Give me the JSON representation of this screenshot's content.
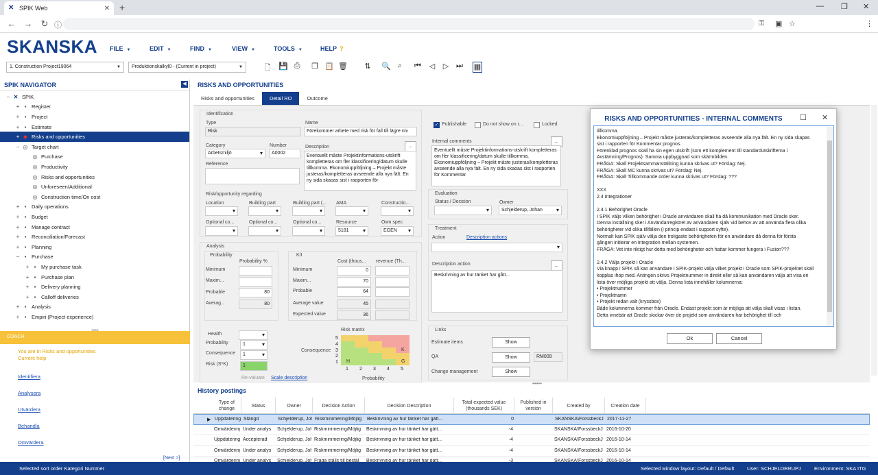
{
  "browser": {
    "tab_title": "SPIK Web",
    "new_tab": "+",
    "tab_close": "✕",
    "window_controls": [
      "—",
      "❐",
      "✕"
    ],
    "nav_icons": [
      "←",
      "→",
      "↻"
    ]
  },
  "app": {
    "brand": "SKANSKA",
    "menu": [
      "FILE",
      "EDIT",
      "FIND",
      "VIEW",
      "TOOLS",
      "HELP"
    ],
    "project_select": "1. Construction Project19064",
    "calc_select": "Produktionskalkyl0 - (Current in project)"
  },
  "navigator": {
    "title": "SPIK NAVIGATOR",
    "items": [
      {
        "label": "SPIK",
        "exp": "−",
        "indent": 0,
        "icon": "spik-icon"
      },
      {
        "label": "Register",
        "exp": "+",
        "indent": 1,
        "icon": "list-icon"
      },
      {
        "label": "Project",
        "exp": "+",
        "indent": 1,
        "icon": "folder-icon"
      },
      {
        "label": "Estimate",
        "exp": "+",
        "indent": 1,
        "icon": "estimate-icon"
      },
      {
        "label": "Risks and opportunities",
        "exp": "+",
        "indent": 1,
        "icon": "diamond-icon",
        "selected": true
      },
      {
        "label": "Target chart",
        "exp": "−",
        "indent": 1,
        "icon": "target-icon"
      },
      {
        "label": "Purchase",
        "exp": "",
        "indent": 2,
        "icon": "target-icon"
      },
      {
        "label": "Productivity",
        "exp": "",
        "indent": 2,
        "icon": "target-icon"
      },
      {
        "label": "Risks and opportunities",
        "exp": "",
        "indent": 2,
        "icon": "target-icon"
      },
      {
        "label": "Unforeseen/Additional",
        "exp": "",
        "indent": 2,
        "icon": "target-icon"
      },
      {
        "label": "Construction time/On cost",
        "exp": "",
        "indent": 2,
        "icon": "target-icon"
      },
      {
        "label": "Daily operations",
        "exp": "+",
        "indent": 1,
        "icon": "calendar-icon"
      },
      {
        "label": "Budget",
        "exp": "+",
        "indent": 1,
        "icon": "budget-icon"
      },
      {
        "label": "Manage contract",
        "exp": "+",
        "indent": 1,
        "icon": "contract-icon"
      },
      {
        "label": "Reconciliation/Forecast",
        "exp": "+",
        "indent": 1,
        "icon": "forecast-icon"
      },
      {
        "label": "Planning",
        "exp": "+",
        "indent": 1,
        "icon": "planning-icon"
      },
      {
        "label": "Purchase",
        "exp": "−",
        "indent": 1,
        "icon": "purchase-icon"
      },
      {
        "label": "My purchase task",
        "exp": "+",
        "indent": 2,
        "icon": "task-icon"
      },
      {
        "label": "Purchase plan",
        "exp": "+",
        "indent": 2,
        "icon": "plan-icon"
      },
      {
        "label": "Delivery planning",
        "exp": "+",
        "indent": 2,
        "icon": "delivery-icon"
      },
      {
        "label": "Calloff deliveries",
        "exp": "+",
        "indent": 2,
        "icon": "calloff-icon"
      },
      {
        "label": "Analysis",
        "exp": "+",
        "indent": 1,
        "icon": "analysis-icon"
      },
      {
        "label": "Empiri (Project experience)",
        "exp": "+",
        "indent": 1,
        "icon": "chart-icon"
      }
    ]
  },
  "coach": {
    "title": "COACH",
    "line1": "You are in Risks and opportunities",
    "line2": "Current help",
    "links": [
      "Identifiera",
      "Analysera",
      "Utvärdera",
      "Behandla",
      "Omvärdera"
    ],
    "next": "[Next >]"
  },
  "main": {
    "title": "RISKS AND OPPORTUNITIES",
    "tabs": [
      "Risks and opportunities",
      "Detail RO",
      "Outcome"
    ],
    "identification": {
      "group": "Identification",
      "type_label": "Type",
      "type_value": "Risk",
      "name_label": "Name",
      "name_value": "Förekommer arbete med risk för fall till lägre niv",
      "category_label": "Category",
      "category_value": "Arbetsmiljö",
      "number_label": "Number",
      "number_value": "A0002",
      "description_label": "Description",
      "description_value": "Eventuellt måste Projektinformations-utskrift kompletteras om fler klassificering/datum skulle tillkomma. Ekonomiuppföljning – Projekt måste justeras/kompletteras avseende alla nya fält. En ny sida skaoas sist i raoporten för",
      "reference_label": "Reference",
      "regarding_label": "Risk/opportunity regarding",
      "row1": [
        "Location",
        "Building part",
        "Building part (...",
        "AMA",
        "Constructio..."
      ],
      "row2": [
        "Optional co...",
        "Optional co...",
        "Optional co...",
        "Resource",
        "Own spec"
      ],
      "resource_value": "5181",
      "ownspec_value": "EGEN"
    },
    "right": {
      "publishable": "Publishable",
      "not_show": "Do not show on r...",
      "locked": "Locked",
      "internal_comments_label": "Internal comments",
      "internal_comments_value": "Eventuellt måste Projektinformations-utskrift kompletteras om fler klassificering/datum skulle tillkomma. Ekonomiuppföljning – Projekt måste justeras/kompletteras avseende alla nya fält. En ny sida skaoas sist i raoporten för Kommentar",
      "evaluation_group": "Evaluation",
      "status_label": "Status / Decision",
      "owner_label": "Owner",
      "owner_value": "Schjelderup, Johan",
      "treatment_group": "Treatment",
      "action_label": "Action",
      "description_actions": "Description actions",
      "desc_action_label": "Description action",
      "desc_action_value": "Beskrivning av hur tänket har gått...",
      "links_group": "Links",
      "estimate_items": "Estimate items",
      "qa": "QA",
      "change_mgmt": "Change management",
      "show": "Show",
      "qa_value": "RM009"
    },
    "analysis": {
      "group": "Analysis",
      "probability_group": "Probability",
      "prob_pct_label": "Probability %",
      "minimum": "Minimum",
      "maximum": "Maxim...",
      "probable": "Probable",
      "average": "Averag...",
      "prob_values": [
        "",
        "",
        "80",
        "80"
      ],
      "ki_group": "K/I",
      "cost_label": "Cost (thous...",
      "revenue_label": "revenue (Th...",
      "cost_values": [
        "0",
        "70",
        "64",
        "45",
        "36"
      ],
      "average_value": "Average value",
      "expected_value": "Expected value",
      "health_label": "Health",
      "probability_label": "Probability",
      "probability_value": "1",
      "consequence_label": "Consequence",
      "consequence_value": "1",
      "risk_label": "Risk (S*K)",
      "risk_value": "1",
      "revaluate": "Re-valuate",
      "scale_description": "Scale description",
      "matrix_title": "Risk matrix",
      "matrix_xlabel": "Probability",
      "matrix_ylabel": "Consequence",
      "matrix_rows": [
        "5",
        "4",
        "3",
        "2",
        "1"
      ],
      "matrix_cols": [
        "1",
        "2",
        "3",
        "4",
        "5"
      ],
      "matrix_h": "H",
      "matrix_k": "K",
      "matrix_g": "G"
    }
  },
  "history": {
    "title": "History postings",
    "columns": [
      "Type of change",
      "Status",
      "Owner",
      "Decision Action",
      "Decision Description",
      "Total expected value (thousands SEK)",
      "Published in version",
      "Created by",
      "Creation date"
    ],
    "rows": [
      [
        "Uppdatering",
        "Stängd",
        "Schjelderup, Johan",
        "Riskminimering/Möjlig",
        "Beskrivning av hur tänket har gått...",
        "0",
        "",
        "SKANSKA\\ForssbeckJ",
        "2017-11-27"
      ],
      [
        "Omvärdering",
        "Under analys",
        "Schjelderup, Johan",
        "Riskminimering/Möjlig",
        "Beskrivning av hur tänket har gått...",
        "-4",
        "",
        "SKANSKA\\ForssbeckJ",
        "2016-10-20"
      ],
      [
        "Uppdatering",
        "Accepterad",
        "Schjelderup, Johan",
        "Riskminimering/Möjlig",
        "Beskrivning av hur tänket har gått...",
        "-4",
        "",
        "SKANSKA\\ForssbeckJ",
        "2016-10-14"
      ],
      [
        "Omvärdering",
        "Under analys",
        "Schjelderup, Johan",
        "Riskminimering/Möjlig",
        "Beskrivning av hur tänket har gått...",
        "-4",
        "",
        "SKANSKA\\ForssbeckJ",
        "2016-10-14"
      ],
      [
        "Omvärdering",
        "Under analys",
        "Schjelderup, Johan",
        "Fråga ställs till bestäl",
        "Beskrivning av hur tänket har gått...",
        "-3",
        "",
        "SKANSKA\\ForssbeckJ",
        "2016-10-14"
      ]
    ]
  },
  "dialog": {
    "title": "RISKS AND OPPORTUNITIES - INTERNAL COMMENTS",
    "lines": [
      "tillkomma.",
      "Ekonomiuppföljning – Projekt måste justeras/kompletteras avseende alla nya fält. En ny sida skapas",
      "sist i rapporten för Kommentar prognos.",
      "Förenklad prognos skall ha sin egen utskrift (som ett komplement till standardutskrifterna i",
      "Avstämning/Prognos). Samma uppbyggnad som skärmbilden.",
      "FRÅGA: Skall Projektsammanställning kunna skrivas ut? Förslag: Nej.",
      "FRÅGA: Skall MC kunna skrivas ut? Förslag: Nej.",
      "FRÅGA: Skall Tillkommande order kunna skrivas ut? Förslag: ???",
      "",
      "XXX",
      "2.4  Integrationer",
      "",
      "2.4.1     Behörighet Oracle",
      "I SPIK väljs vilken behörighet i Oracle användaren skall ha då kommunikation med Oracle sker.",
      "Denna inställning sker i Användarregistret av användaren själv vid behov av att använda flera olika",
      "behörigheter vid olika tillfällen (i princip endast i support syfte).",
      "Normalt kan SPIK själv välja den troligaste behörigheten för en användare då denna för första",
      "gången initierar en integration mellan systemen.",
      "FRÅGA: Vet inte riktigt hur detta med behörigheter och hattar kommer fungera i Fusion???",
      "",
      "2.4.2     Välja projekt i Oracle",
      "Via knapp i SPIK så kan användare i SPIK-projekt välja vilket projekt i Oracle som SPIK-projektet skall",
      "kopplas ihop med. Antingen skrivs Projektnummer in direkt eller så kan användaren välja att visa en",
      "lista över möjliga projekt att välja. Denna lista innehåller kolumnerna:",
      "•     Projektnummer",
      "•     Projektnamn",
      "•     Projekt redan valt (kryssbox)",
      "Både kolumnerna kommer från Oracle. Endast projekt som är möjliga att välja skall visas i listan.",
      "Detta innebär att Oracle skickar över de projekt som användaren har behörighet till och"
    ],
    "ok": "Ok",
    "cancel": "Cancel"
  },
  "status": {
    "left": "Selected sort order Kategori Nummer",
    "layout": "Selected window layout: Default / Default",
    "user": "User: SCHJELDERUPJ",
    "env": "Environment: SKA ITG"
  }
}
